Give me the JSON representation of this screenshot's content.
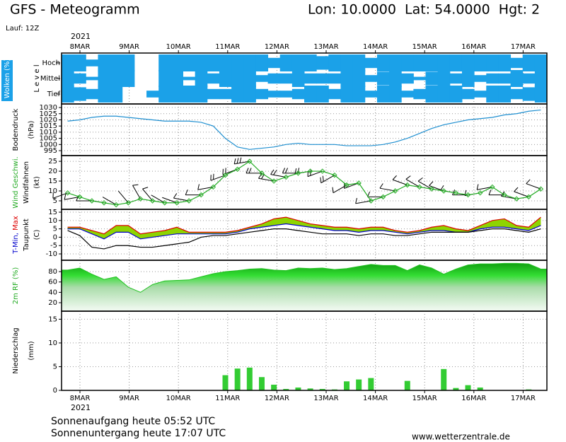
{
  "header": {
    "title": "GFS - Meteogramm",
    "location": "Lon: 10.0000  Lat: 54.0000  Hgt: 2",
    "run": "Lauf: 12Z"
  },
  "time_axis": {
    "year": "2021",
    "labels": [
      "8MAR",
      "9MAR",
      "10MAR",
      "11MAR",
      "12MAR",
      "13MAR",
      "14MAR",
      "15MAR",
      "16MAR",
      "17MAR"
    ]
  },
  "chart_data": [
    {
      "type": "clouds",
      "ylabel": [
        [
          {
            "text": "Wolken (%)",
            "color": "#ffffff"
          }
        ],
        [
          {
            "text": "L e v e l",
            "color": "#000000"
          }
        ]
      ],
      "color": "#1ba1e8",
      "series": [
        {
          "name": "Hoch",
          "values": [
            100,
            100,
            40,
            100,
            100,
            100,
            0,
            0,
            100,
            100,
            100,
            100,
            100,
            100,
            100,
            100,
            100,
            60,
            100,
            100,
            100,
            80,
            100,
            100,
            100,
            60,
            100,
            100,
            100,
            100,
            100,
            100,
            100,
            100,
            100,
            100,
            100,
            60,
            100,
            100
          ]
        },
        {
          "name": "Mittel",
          "values": [
            100,
            60,
            20,
            100,
            100,
            100,
            0,
            0,
            100,
            100,
            20,
            100,
            60,
            100,
            100,
            100,
            40,
            60,
            60,
            100,
            60,
            60,
            60,
            100,
            100,
            40,
            80,
            100,
            60,
            20,
            80,
            100,
            60,
            100,
            40,
            60,
            60,
            100,
            60,
            100
          ]
        },
        {
          "name": "Tief",
          "values": [
            100,
            80,
            60,
            100,
            100,
            0,
            0,
            40,
            100,
            100,
            100,
            100,
            60,
            60,
            100,
            100,
            60,
            40,
            40,
            60,
            100,
            100,
            60,
            100,
            100,
            40,
            100,
            100,
            40,
            60,
            100,
            100,
            100,
            60,
            40,
            100,
            100,
            60,
            80,
            100
          ]
        }
      ]
    },
    {
      "type": "line",
      "ylabel": [
        [
          {
            "text": "Bodendruck",
            "color": "#000000"
          }
        ],
        [
          {
            "text": "(hPa)",
            "color": "#000000"
          }
        ]
      ],
      "ylim": [
        991,
        1032.9
      ],
      "yticks": [
        995,
        1000,
        1005,
        1010,
        1015,
        1020,
        1025,
        1030
      ],
      "grid": true,
      "series": [
        {
          "color": "#1f8fd0",
          "values": [
            1019,
            1020,
            1022,
            1023,
            1023,
            1022,
            1021,
            1020,
            1019,
            1019,
            1019,
            1018,
            1015,
            1005,
            998,
            996,
            997,
            998,
            1000,
            1001,
            1000,
            1000,
            1000,
            999,
            999,
            999,
            1000,
            1002,
            1005,
            1009,
            1013,
            1016,
            1018,
            1020,
            1021,
            1022,
            1024,
            1025,
            1027,
            1028
          ]
        }
      ]
    },
    {
      "type": "wind",
      "ylabel": [
        [
          {
            "text": "Wind Geschwi.",
            "color": "#22aa22"
          }
        ],
        [
          {
            "text": "Windfahnen",
            "color": "#000000"
          }
        ],
        [
          {
            "text": "(kt)",
            "color": "#000000"
          }
        ]
      ],
      "ylim": [
        0.7,
        27.9
      ],
      "yticks": [
        5,
        10,
        15,
        20,
        25
      ],
      "grid": true,
      "speed": {
        "color": "#22aa22",
        "values": [
          9,
          7,
          5,
          4,
          3,
          4,
          6,
          5,
          4,
          4,
          5,
          8,
          12,
          18,
          21,
          25,
          19,
          15,
          17,
          19,
          20,
          20,
          18,
          13,
          14,
          5,
          7,
          10,
          13,
          12,
          11,
          10,
          9,
          8,
          9,
          12,
          8,
          6,
          7,
          11
        ]
      },
      "direction": {
        "color": "#000000",
        "values": [
          250,
          260,
          270,
          280,
          300,
          320,
          330,
          320,
          300,
          290,
          280,
          270,
          260,
          250,
          250,
          260,
          270,
          280,
          280,
          270,
          260,
          250,
          240,
          240,
          250,
          260,
          270,
          280,
          290,
          300,
          300,
          290,
          280,
          270,
          260,
          260,
          270,
          280,
          290,
          290
        ]
      }
    },
    {
      "type": "temperature",
      "ylabel": [
        [
          {
            "text": "T-Min, ",
            "color": "#0000cc"
          },
          {
            "text": "Max",
            "color": "#dd0000"
          }
        ],
        [
          {
            "text": "Taupunkt",
            "color": "#000000"
          }
        ],
        [
          {
            "text": "(C)",
            "color": "#000000"
          }
        ]
      ],
      "ylim": [
        -13.8,
        16.7
      ],
      "yticks": [
        -10,
        -5,
        0,
        5,
        10,
        15
      ],
      "grid": true,
      "fill": "#8ed400",
      "series": [
        {
          "name": "T-Max",
          "color": "#dd0000",
          "values": [
            6,
            6,
            4,
            2,
            7,
            7,
            2,
            3,
            4,
            6,
            3,
            3,
            3,
            3,
            4,
            6,
            8,
            11,
            12,
            10,
            8,
            7,
            6,
            6,
            5,
            6,
            6,
            4,
            3,
            4,
            6,
            7,
            5,
            4,
            7,
            10,
            11,
            7,
            6,
            12
          ]
        },
        {
          "name": "T-Min",
          "color": "#0000cc",
          "values": [
            5,
            5,
            2,
            -1,
            3,
            3,
            -1,
            0,
            1,
            2,
            2,
            2,
            2,
            2,
            3,
            5,
            6,
            7,
            8,
            7,
            6,
            5,
            4,
            4,
            3,
            4,
            4,
            3,
            2,
            3,
            4,
            4,
            3,
            3,
            5,
            6,
            6,
            5,
            4,
            7
          ]
        },
        {
          "name": "Taupunkt",
          "color": "#000000",
          "values": [
            4,
            1,
            -6,
            -7,
            -5,
            -5,
            -6,
            -6,
            -5,
            -4,
            -3,
            0,
            1,
            1,
            2,
            3,
            4,
            5,
            5,
            4,
            3,
            2,
            2,
            2,
            1,
            2,
            2,
            1,
            1,
            2,
            3,
            3,
            3,
            3,
            4,
            5,
            5,
            4,
            3,
            5
          ]
        }
      ]
    },
    {
      "type": "area",
      "ylabel": [
        [
          {
            "text": "2m RF (%)",
            "color": "#22aa22"
          }
        ]
      ],
      "ylim": [
        3.6,
        102
      ],
      "yticks": [
        20,
        40,
        60,
        80
      ],
      "grid": true,
      "series": [
        {
          "color": "#22c022",
          "values": [
            83,
            87,
            75,
            65,
            70,
            50,
            40,
            55,
            62,
            63,
            64,
            70,
            76,
            80,
            82,
            85,
            86,
            83,
            82,
            87,
            86,
            87,
            84,
            86,
            90,
            94,
            92,
            92,
            82,
            93,
            87,
            75,
            85,
            93,
            95,
            95,
            96,
            96,
            95,
            85
          ]
        }
      ]
    },
    {
      "type": "bar",
      "ylabel": [
        [
          {
            "text": "Niederschlag",
            "color": "#000000"
          }
        ],
        [
          {
            "text": "(mm)",
            "color": "#000000"
          }
        ]
      ],
      "ylim": [
        0,
        16.7
      ],
      "yticks": [
        0,
        5,
        10,
        15
      ],
      "grid": true,
      "series": [
        {
          "color": "#33cc33",
          "values": [
            0,
            0,
            0,
            0,
            0,
            0,
            0,
            0,
            0,
            0,
            0,
            0,
            0,
            3.2,
            4.6,
            4.8,
            2.8,
            1.2,
            0.3,
            0.6,
            0.4,
            0.3,
            0.2,
            1.9,
            2.3,
            2.6,
            0,
            0,
            2.0,
            0,
            0,
            4.5,
            0.5,
            1.1,
            0.6,
            0,
            0,
            0,
            0.2,
            0
          ]
        }
      ]
    }
  ],
  "footer": {
    "sunrise": "Sonnenaufgang heute 05:52 UTC",
    "sunset": "Sonnenuntergang heute 17:07 UTC",
    "source": "www.wetterzentrale.de"
  }
}
